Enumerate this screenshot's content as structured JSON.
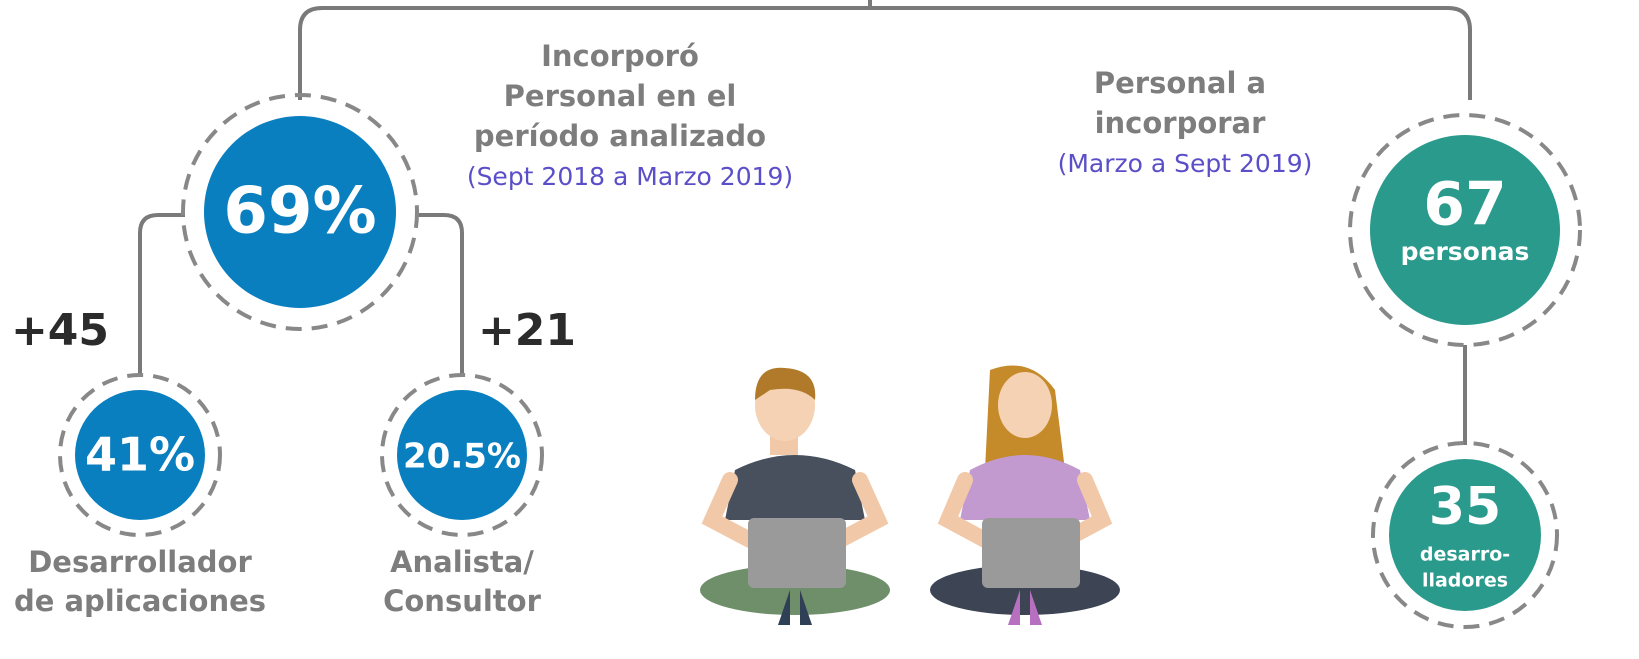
{
  "left": {
    "heading": [
      "Incorporó",
      "Personal en el",
      "período analizado"
    ],
    "period": "(Sept 2018 a Marzo 2019)",
    "total": "69%",
    "branches": [
      {
        "count": "+45",
        "share": "41%",
        "role": [
          "Desarrollador",
          "de aplicaciones"
        ]
      },
      {
        "count": "+21",
        "share": "20.5%",
        "role": [
          "Analista/",
          "Consultor"
        ]
      }
    ]
  },
  "right": {
    "heading": [
      "Personal a",
      "incorporar"
    ],
    "period": "(Marzo a Sept 2019)",
    "total": {
      "number": "67",
      "unit": "personas"
    },
    "sub": {
      "number": "35",
      "unit": [
        "desarro-",
        "lladores"
      ]
    }
  }
}
